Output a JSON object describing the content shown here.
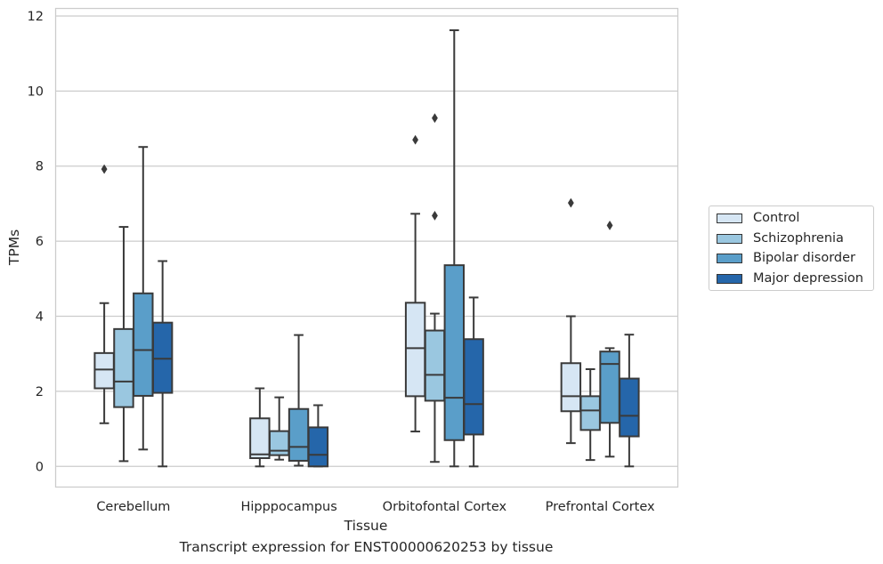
{
  "chart_data": {
    "type": "box",
    "title": "",
    "caption": "Transcript expression for ENST00000620253 by tissue",
    "xlabel": "Tissue",
    "ylabel": "TPMs",
    "ylim": [
      -0.55,
      12.2
    ],
    "yticks": [
      0,
      2,
      4,
      6,
      8,
      10,
      12
    ],
    "grid": true,
    "legend_position": "right-center",
    "categories": [
      "Cerebellum",
      "Hipppocampus",
      "Orbitofontal Cortex",
      "Prefrontal Cortex"
    ],
    "series": [
      {
        "name": "Control",
        "color": "#d6e6f4",
        "boxes": [
          {
            "whisker_low": 1.15,
            "q1": 2.08,
            "median": 2.58,
            "q3": 3.02,
            "whisker_high": 4.35,
            "outliers": [
              7.92
            ]
          },
          {
            "whisker_low": 0.0,
            "q1": 0.22,
            "median": 0.32,
            "q3": 1.28,
            "whisker_high": 2.08,
            "outliers": []
          },
          {
            "whisker_low": 0.93,
            "q1": 1.87,
            "median": 3.15,
            "q3": 4.36,
            "whisker_high": 6.73,
            "outliers": [
              8.7
            ]
          },
          {
            "whisker_low": 0.62,
            "q1": 1.47,
            "median": 1.87,
            "q3": 2.75,
            "whisker_high": 4.0,
            "outliers": [
              7.02
            ]
          }
        ]
      },
      {
        "name": "Schizophrenia",
        "color": "#9ac7e0",
        "boxes": [
          {
            "whisker_low": 0.14,
            "q1": 1.58,
            "median": 2.26,
            "q3": 3.66,
            "whisker_high": 6.38,
            "outliers": []
          },
          {
            "whisker_low": 0.18,
            "q1": 0.3,
            "median": 0.42,
            "q3": 0.94,
            "whisker_high": 1.84,
            "outliers": []
          },
          {
            "whisker_low": 0.12,
            "q1": 1.75,
            "median": 2.44,
            "q3": 3.62,
            "whisker_high": 4.07,
            "outliers": [
              6.68,
              9.28
            ]
          },
          {
            "whisker_low": 0.17,
            "q1": 0.97,
            "median": 1.49,
            "q3": 1.87,
            "whisker_high": 2.59,
            "outliers": []
          }
        ]
      },
      {
        "name": "Bipolar disorder",
        "color": "#5a9ec9",
        "boxes": [
          {
            "whisker_low": 0.45,
            "q1": 1.88,
            "median": 3.1,
            "q3": 4.61,
            "whisker_high": 8.51,
            "outliers": []
          },
          {
            "whisker_low": 0.02,
            "q1": 0.15,
            "median": 0.52,
            "q3": 1.53,
            "whisker_high": 3.5,
            "outliers": []
          },
          {
            "whisker_low": 0.0,
            "q1": 0.7,
            "median": 1.83,
            "q3": 5.36,
            "whisker_high": 11.62,
            "outliers": []
          },
          {
            "whisker_low": 0.26,
            "q1": 1.16,
            "median": 2.73,
            "q3": 3.06,
            "whisker_high": 3.15,
            "outliers": [
              6.42
            ]
          }
        ]
      },
      {
        "name": "Major depression",
        "color": "#2566aa",
        "boxes": [
          {
            "whisker_low": 0.0,
            "q1": 1.96,
            "median": 2.87,
            "q3": 3.83,
            "whisker_high": 5.47,
            "outliers": []
          },
          {
            "whisker_low": 0.0,
            "q1": 0.0,
            "median": 0.31,
            "q3": 1.04,
            "whisker_high": 1.63,
            "outliers": []
          },
          {
            "whisker_low": 0.0,
            "q1": 0.85,
            "median": 1.66,
            "q3": 3.39,
            "whisker_high": 4.5,
            "outliers": []
          },
          {
            "whisker_low": 0.0,
            "q1": 0.8,
            "median": 1.35,
            "q3": 2.34,
            "whisker_high": 3.51,
            "outliers": []
          }
        ]
      }
    ]
  }
}
